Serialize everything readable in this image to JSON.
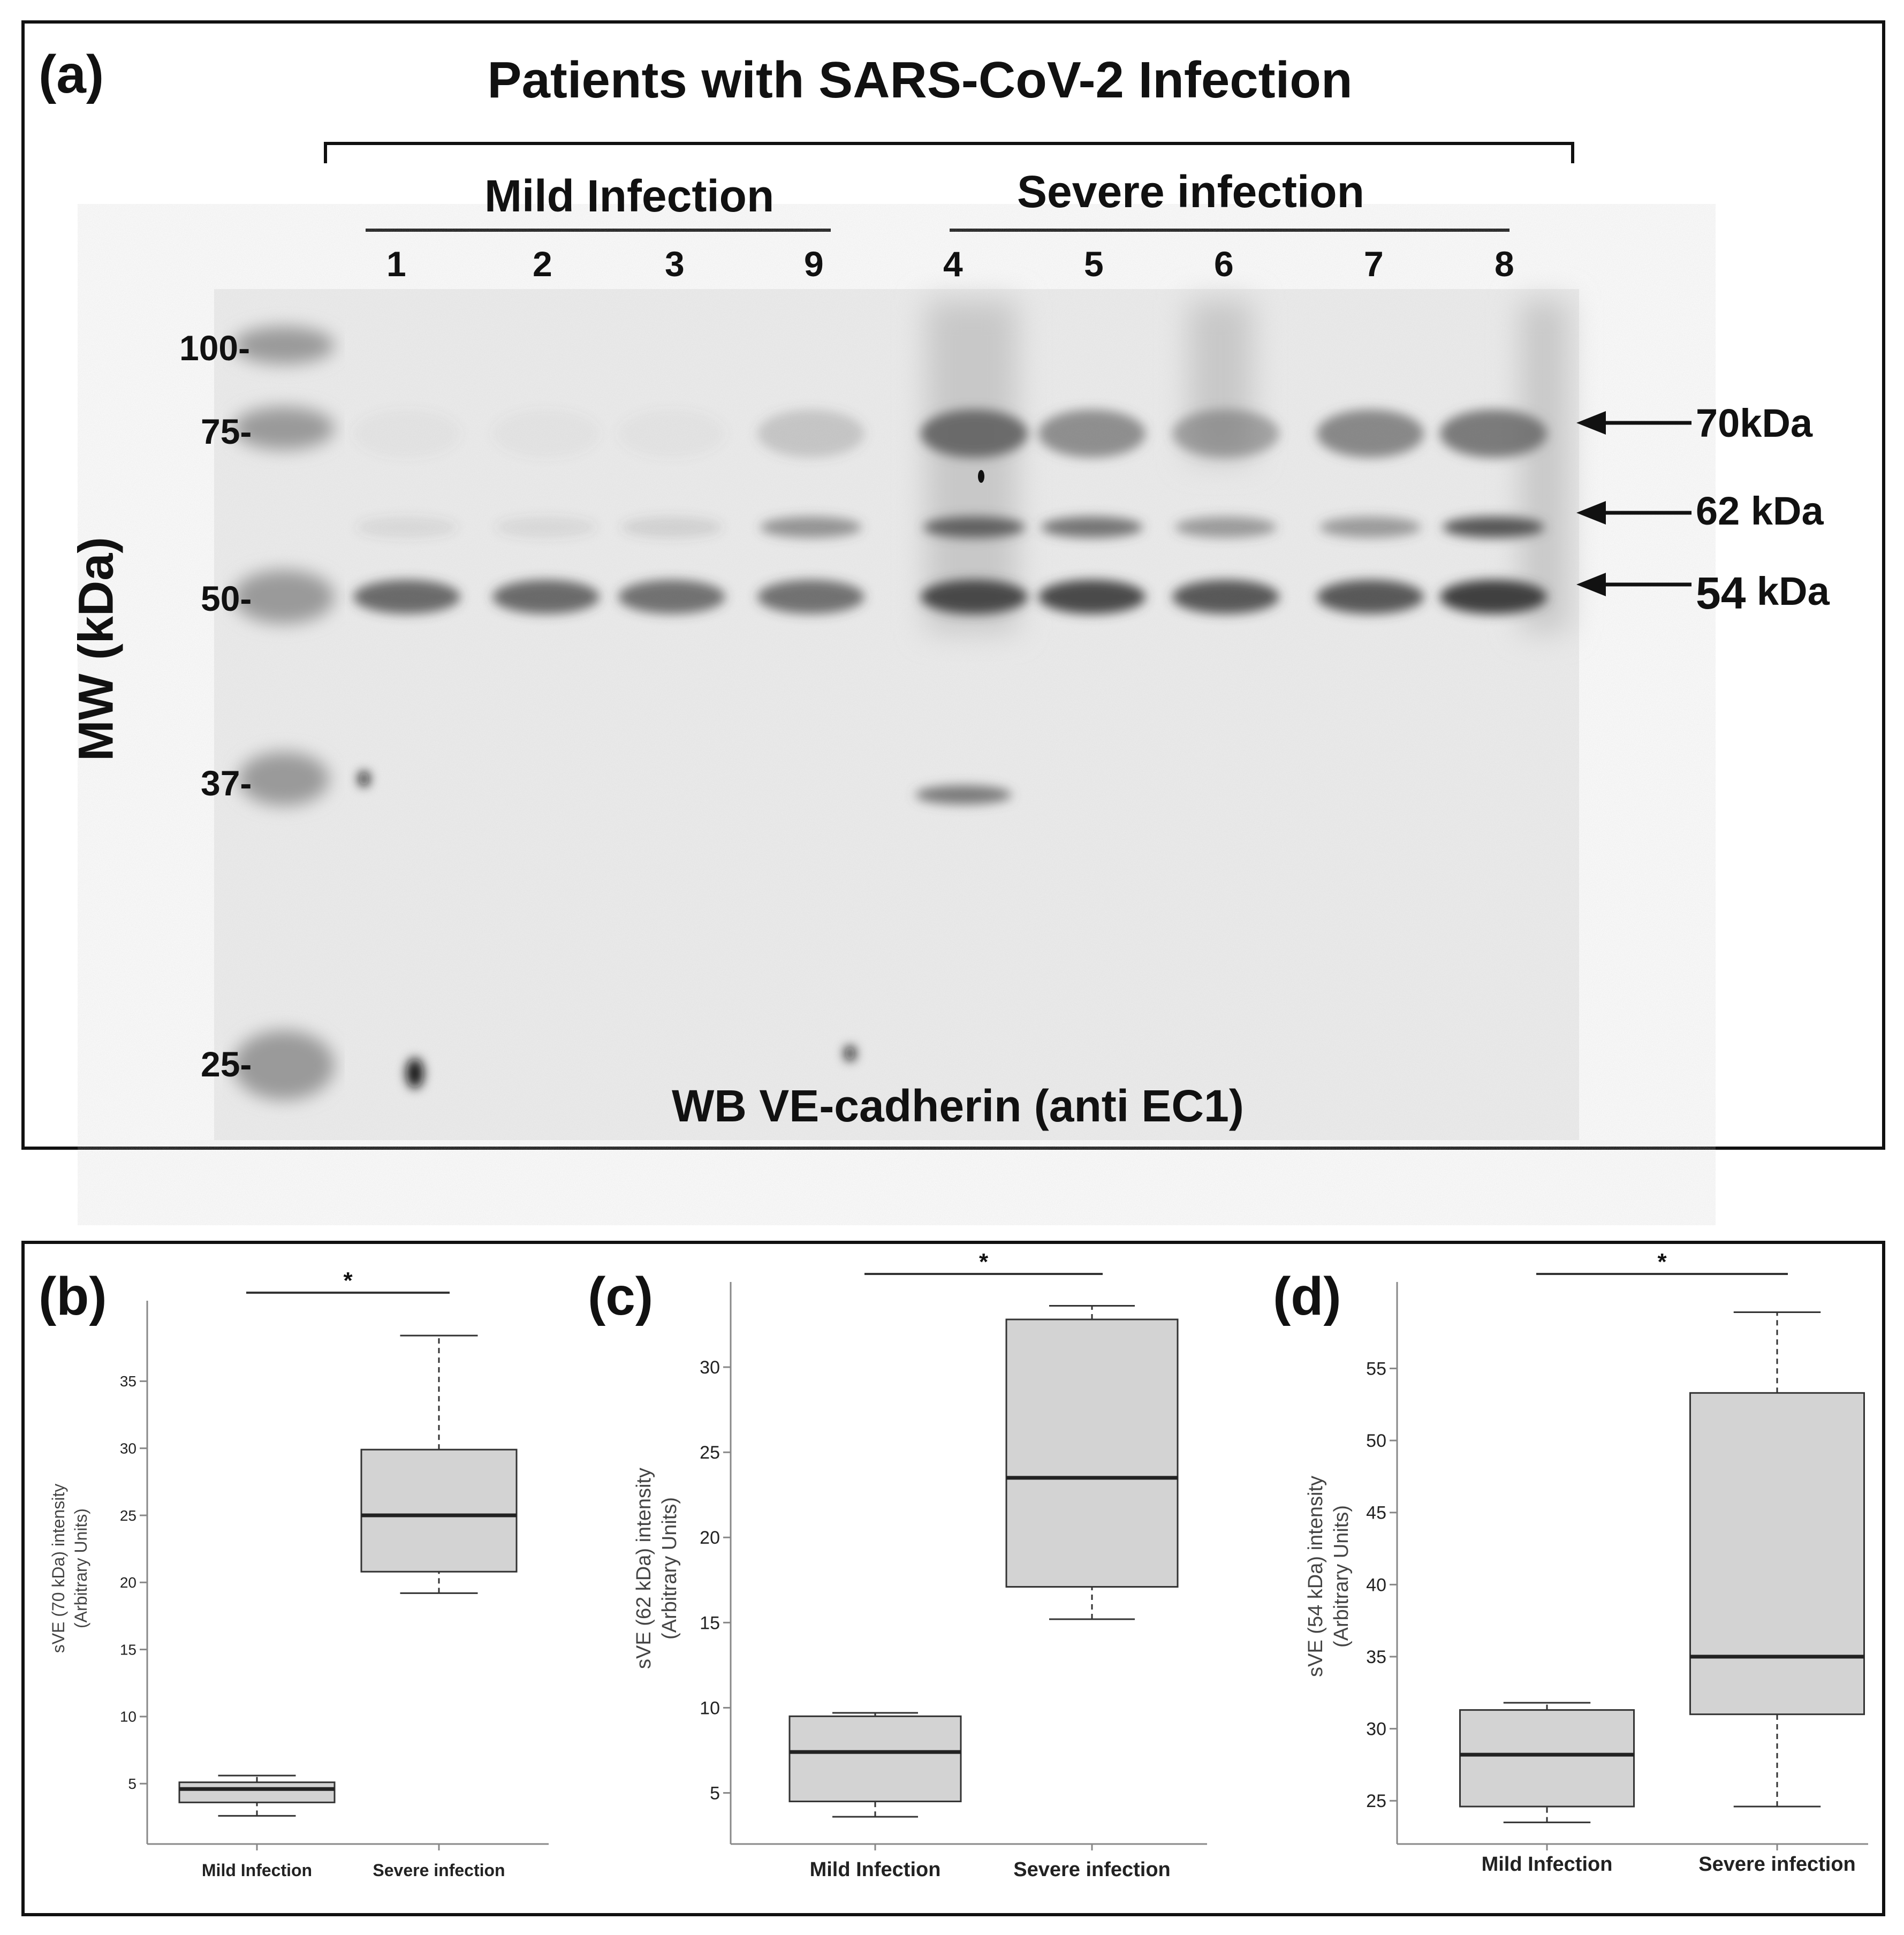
{
  "panel_a": {
    "label": "(a)",
    "title": "Patients with SARS-CoV-2  Infection",
    "group_mild": "Mild Infection",
    "group_severe": "Severe infection",
    "lanes": [
      "1",
      "2",
      "3",
      "9",
      "4",
      "5",
      "6",
      "7",
      "8"
    ],
    "y_axis_title": "MW (kDa)",
    "markers": [
      "100-",
      "75-",
      "50-",
      "37-",
      "25-"
    ],
    "arrows": [
      "70kDa",
      "62 kDa",
      "54",
      "kDa"
    ],
    "caption": "WB VE-cadherin (anti EC1)"
  },
  "panels": [
    {
      "label": "(b)"
    },
    {
      "label": "(c)"
    },
    {
      "label": "(d)"
    }
  ],
  "chart_data": [
    {
      "type": "box",
      "ylabel": "sVE (70 kDa)  intensity\n(Arbitrary Units)",
      "ylabel_lines": [
        "sVE (70 kDa)  intensity",
        "(Arbitrary Units)"
      ],
      "ylim": [
        0.5,
        41
      ],
      "yticks": [
        "5",
        "10",
        "15",
        "20",
        "25",
        "30",
        "35"
      ],
      "categories": [
        "Mild Infection",
        "Severe  infection"
      ],
      "boxes": [
        {
          "category": "Mild Infection",
          "whisker_low": 2.6,
          "q1": 3.6,
          "median": 4.6,
          "q3": 5.1,
          "whisker_high": 5.6
        },
        {
          "category": "Severe  infection",
          "whisker_low": 19.2,
          "q1": 20.8,
          "median": 25.0,
          "q3": 29.9,
          "whisker_high": 38.4
        }
      ],
      "significance": "*"
    },
    {
      "type": "box",
      "ylabel": "sVE (62 kDa)  intensity\n(Arbitrary Units)",
      "ylabel_lines": [
        "sVE (62 kDa)  intensity",
        "(Arbitrary Units)"
      ],
      "ylim": [
        2,
        35
      ],
      "yticks": [
        "5",
        "10",
        "15",
        "20",
        "25",
        "30"
      ],
      "categories": [
        "Mild Infection",
        "Severe  infection"
      ],
      "boxes": [
        {
          "category": "Mild Infection",
          "whisker_low": 3.6,
          "q1": 4.5,
          "median": 7.4,
          "q3": 9.5,
          "whisker_high": 9.7
        },
        {
          "category": "Severe  infection",
          "whisker_low": 15.2,
          "q1": 17.1,
          "median": 23.5,
          "q3": 32.8,
          "whisker_high": 33.6
        }
      ],
      "significance": "*"
    },
    {
      "type": "box",
      "ylabel": "sVE (54 kDa)  intensity\n(Arbitrary Units)",
      "ylabel_lines": [
        "sVE (54 kDa)  intensity",
        "(Arbitrary Units)"
      ],
      "ylim": [
        22,
        61
      ],
      "yticks": [
        "25",
        "30",
        "35",
        "40",
        "45",
        "50",
        "55"
      ],
      "categories": [
        "Mild Infection",
        "Severe  infection"
      ],
      "boxes": [
        {
          "category": "Mild Infection",
          "whisker_low": 23.5,
          "q1": 24.6,
          "median": 28.2,
          "q3": 31.3,
          "whisker_high": 31.8
        },
        {
          "category": "Severe  infection",
          "whisker_low": 24.6,
          "q1": 31.0,
          "median": 35.0,
          "q3": 53.3,
          "whisker_high": 58.9
        }
      ],
      "significance": "*"
    }
  ]
}
